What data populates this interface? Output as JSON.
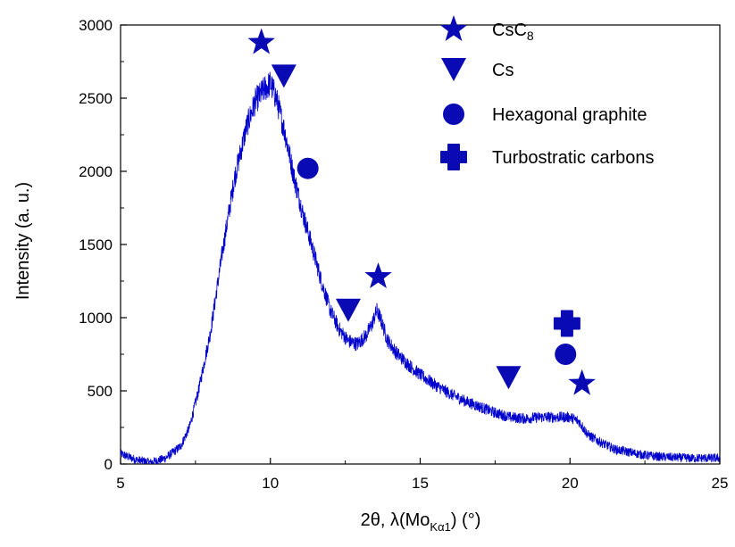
{
  "chart_data": {
    "type": "line",
    "title": "",
    "xlabel": {
      "prefix": "2θ, λ(Mo",
      "subscript": "Kα1",
      "suffix": ") (°)"
    },
    "ylabel": "Intensity (a. u.)",
    "xlim": [
      5,
      25
    ],
    "ylim": [
      0,
      3000
    ],
    "xticks": [
      "5",
      "10",
      "15",
      "20",
      "25"
    ],
    "yticks": [
      "0",
      "500",
      "1000",
      "1500",
      "2000",
      "2500",
      "3000"
    ],
    "grid": false,
    "legend_position": "top-right",
    "line_color": "#0000CC",
    "marker_color": "#0A0AB4",
    "series": [
      {
        "x": [
          5.0,
          5.5,
          6.0,
          6.5,
          7.0,
          7.3,
          7.6,
          8.0,
          8.4,
          8.8,
          9.2,
          9.5,
          9.8,
          10.0,
          10.2,
          10.5,
          10.8,
          11.1,
          11.4,
          11.7,
          12.0,
          12.3,
          12.6,
          12.9,
          13.2,
          13.4,
          13.55,
          13.7,
          13.9,
          14.2,
          14.6,
          15.0,
          15.5,
          16.0,
          16.5,
          17.0,
          17.5,
          18.0,
          18.5,
          19.0,
          19.5,
          20.0,
          20.3,
          20.6,
          21.0,
          21.5,
          22.0,
          22.5,
          23.0,
          23.5,
          24.0,
          24.5,
          25.0
        ],
        "y": [
          70,
          30,
          10,
          40,
          120,
          250,
          500,
          900,
          1450,
          1950,
          2300,
          2480,
          2560,
          2600,
          2500,
          2250,
          1950,
          1700,
          1480,
          1250,
          1050,
          920,
          840,
          820,
          880,
          960,
          1050,
          980,
          850,
          760,
          680,
          610,
          540,
          480,
          430,
          390,
          350,
          320,
          310,
          320,
          320,
          320,
          290,
          200,
          150,
          100,
          80,
          60,
          50,
          45,
          40,
          40,
          40
        ]
      }
    ],
    "legend": [
      {
        "symbol": "star",
        "label": "CsC",
        "subscript": "8"
      },
      {
        "symbol": "triangle-down",
        "label": "Cs",
        "subscript": ""
      },
      {
        "symbol": "circle",
        "label": "Hexagonal graphite",
        "subscript": ""
      },
      {
        "symbol": "cross",
        "label": "Turbostratic carbons",
        "subscript": ""
      }
    ],
    "markers": [
      {
        "symbol": "star",
        "x": 9.7,
        "y": 2880
      },
      {
        "symbol": "triangle-down",
        "x": 10.45,
        "y": 2650
      },
      {
        "symbol": "circle",
        "x": 11.25,
        "y": 2020
      },
      {
        "symbol": "star",
        "x": 13.6,
        "y": 1280
      },
      {
        "symbol": "triangle-down",
        "x": 12.6,
        "y": 1050
      },
      {
        "symbol": "triangle-down",
        "x": 17.95,
        "y": 590
      },
      {
        "symbol": "cross",
        "x": 19.9,
        "y": 960
      },
      {
        "symbol": "circle",
        "x": 19.85,
        "y": 750
      },
      {
        "symbol": "star",
        "x": 20.4,
        "y": 550
      }
    ]
  }
}
